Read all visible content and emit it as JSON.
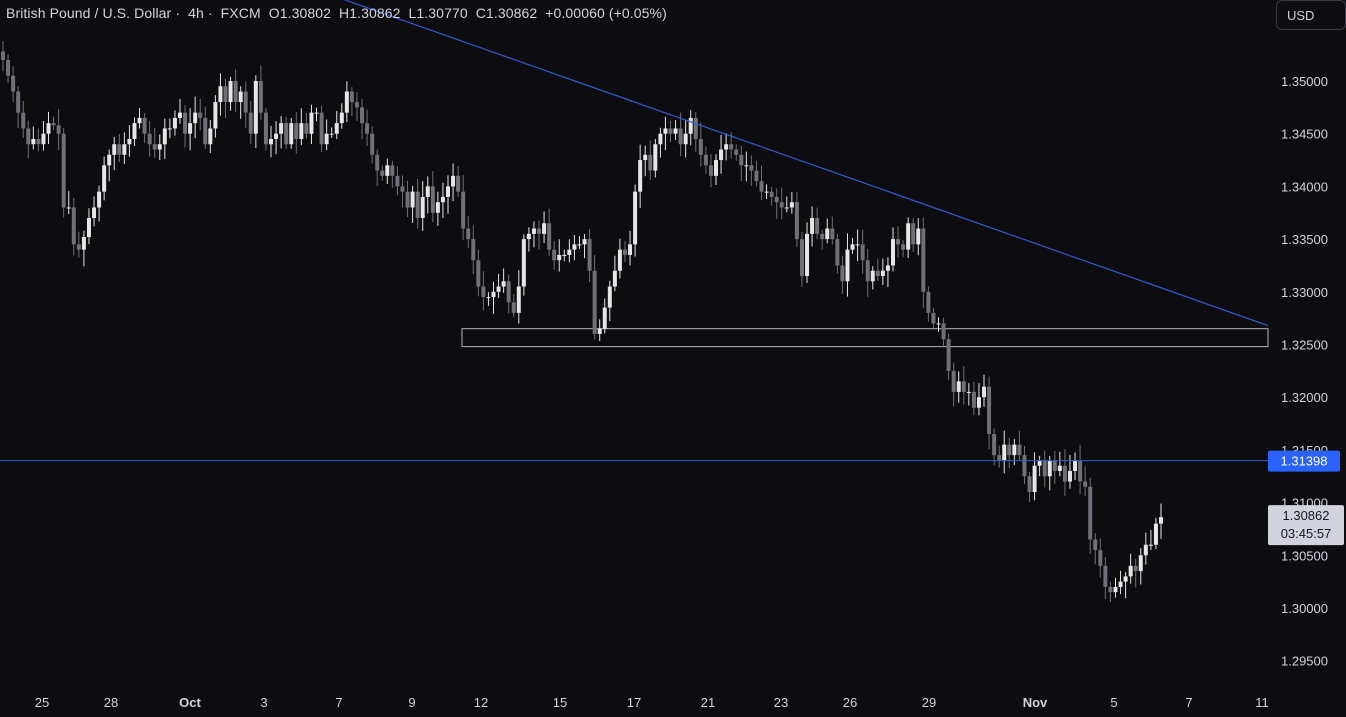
{
  "header": {
    "symbol": "British Pound / U.S. Dollar",
    "interval": "4h",
    "source": "FXCM",
    "open": "O1.30802",
    "high": "H1.30862",
    "low": "L1.30770",
    "close": "C1.30862",
    "change": "+0.00060 (+0.05%)",
    "currency": "USD"
  },
  "chart_data": {
    "type": "candlestick",
    "y_ticks": [
      "1.35000",
      "1.34500",
      "1.34000",
      "1.33500",
      "1.33000",
      "1.32500",
      "1.32000",
      "1.31500",
      "1.31000",
      "1.30500",
      "1.30000",
      "1.29500"
    ],
    "x_ticks": [
      {
        "label": "25",
        "bold": false
      },
      {
        "label": "28",
        "bold": false
      },
      {
        "label": "Oct",
        "bold": true
      },
      {
        "label": "3",
        "bold": false
      },
      {
        "label": "7",
        "bold": false
      },
      {
        "label": "9",
        "bold": false
      },
      {
        "label": "12",
        "bold": false
      },
      {
        "label": "15",
        "bold": false
      },
      {
        "label": "17",
        "bold": false
      },
      {
        "label": "21",
        "bold": false
      },
      {
        "label": "23",
        "bold": false
      },
      {
        "label": "26",
        "bold": false
      },
      {
        "label": "29",
        "bold": false
      },
      {
        "label": "Nov",
        "bold": true
      },
      {
        "label": "5",
        "bold": false
      },
      {
        "label": "7",
        "bold": false
      },
      {
        "label": "11",
        "bold": false
      }
    ],
    "ylim": [
      1.2925,
      1.3565
    ],
    "support_zone": {
      "low": 1.3248,
      "high": 1.3265
    },
    "horizontal_level": {
      "value": 1.31398,
      "label": "1.31398"
    },
    "trendline": {
      "start": 1.3592,
      "end": 1.3268
    },
    "last_price": {
      "value": 1.30862,
      "label": "1.30862",
      "countdown": "03:45:57"
    },
    "closes": [
      1.352,
      1.3505,
      1.349,
      1.347,
      1.3455,
      1.344,
      1.3445,
      1.344,
      1.345,
      1.346,
      1.3458,
      1.345,
      1.338,
      1.338,
      1.3345,
      1.334,
      1.3352,
      1.337,
      1.338,
      1.3395,
      1.342,
      1.343,
      1.344,
      1.343,
      1.344,
      1.3445,
      1.346,
      1.3465,
      1.345,
      1.344,
      1.3435,
      1.344,
      1.3455,
      1.3455,
      1.3465,
      1.347,
      1.345,
      1.346,
      1.347,
      1.3465,
      1.344,
      1.3455,
      1.348,
      1.3495,
      1.348,
      1.35,
      1.348,
      1.349,
      1.347,
      1.345,
      1.35,
      1.347,
      1.344,
      1.3445,
      1.345,
      1.346,
      1.344,
      1.346,
      1.3445,
      1.346,
      1.345,
      1.347,
      1.347,
      1.344,
      1.345,
      1.345,
      1.346,
      1.347,
      1.349,
      1.348,
      1.3475,
      1.346,
      1.345,
      1.343,
      1.3415,
      1.341,
      1.342,
      1.341,
      1.34,
      1.3395,
      1.338,
      1.3395,
      1.337,
      1.339,
      1.34,
      1.3375,
      1.3385,
      1.339,
      1.34,
      1.341,
      1.3395,
      1.336,
      1.335,
      1.333,
      1.3305,
      1.3295,
      1.3295,
      1.33,
      1.3305,
      1.331,
      1.329,
      1.328,
      1.3305,
      1.335,
      1.3355,
      1.336,
      1.3355,
      1.3365,
      1.334,
      1.333,
      1.3335,
      1.3335,
      1.334,
      1.3345,
      1.3345,
      1.335,
      1.332,
      1.326,
      1.3265,
      1.3285,
      1.3305,
      1.332,
      1.334,
      1.3335,
      1.3345,
      1.3395,
      1.3425,
      1.343,
      1.3415,
      1.344,
      1.345,
      1.3455,
      1.345,
      1.3455,
      1.344,
      1.345,
      1.3465,
      1.3445,
      1.343,
      1.342,
      1.341,
      1.3425,
      1.3435,
      1.344,
      1.3435,
      1.343,
      1.342,
      1.342,
      1.3415,
      1.3405,
      1.3395,
      1.3395,
      1.339,
      1.3385,
      1.338,
      1.338,
      1.3385,
      1.335,
      1.3315,
      1.3355,
      1.337,
      1.3355,
      1.335,
      1.336,
      1.335,
      1.3325,
      1.331,
      1.334,
      1.3345,
      1.3345,
      1.333,
      1.331,
      1.332,
      1.3315,
      1.332,
      1.3325,
      1.335,
      1.3345,
      1.334,
      1.3365,
      1.3345,
      1.336,
      1.33,
      1.328,
      1.327,
      1.327,
      1.3255,
      1.3225,
      1.3205,
      1.3215,
      1.3205,
      1.3205,
      1.319,
      1.32,
      1.321,
      1.3165,
      1.3145,
      1.314,
      1.3155,
      1.3145,
      1.3155,
      1.3145,
      1.3125,
      1.311,
      1.3135,
      1.314,
      1.3125,
      1.314,
      1.313,
      1.3135,
      1.312,
      1.313,
      1.314,
      1.312,
      1.3115,
      1.3065,
      1.3055,
      1.304,
      1.302,
      1.3015,
      1.302,
      1.3025,
      1.303,
      1.304,
      1.3035,
      1.305,
      1.306,
      1.306,
      1.308,
      1.30862
    ]
  }
}
